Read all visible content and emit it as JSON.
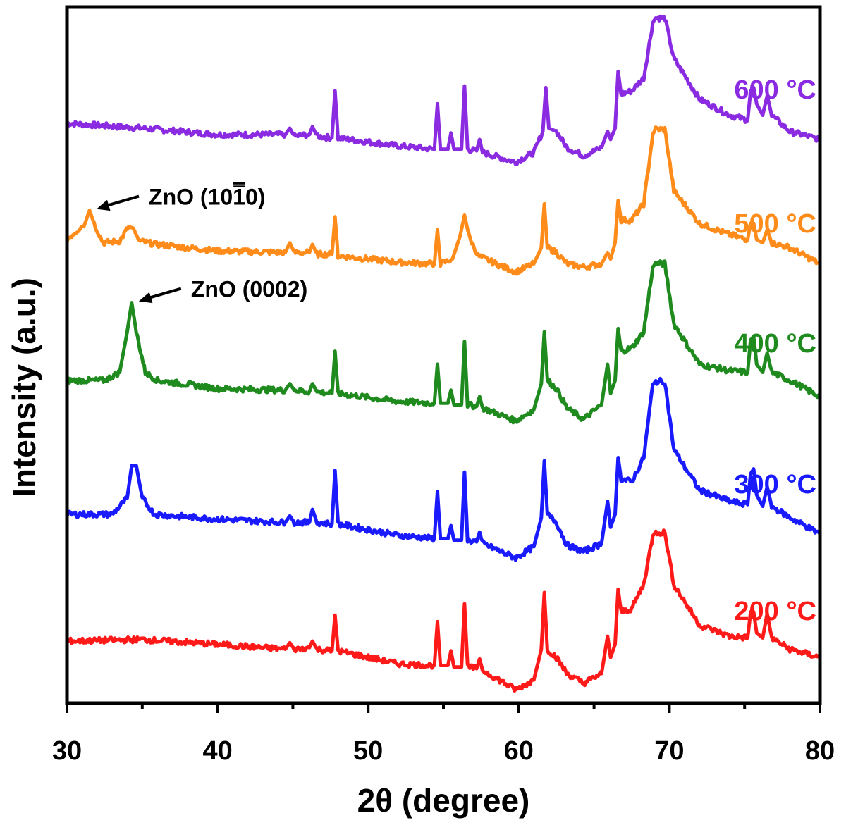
{
  "chart_data": {
    "type": "line",
    "title": "",
    "xlabel": "2θ (degree)",
    "ylabel": "Intensity (a.u.)",
    "xlim": [
      30,
      80
    ],
    "x_ticks": [
      30,
      40,
      50,
      60,
      70,
      80
    ],
    "y_ticks_shown": false,
    "legend": "inline labels at right",
    "series": [
      {
        "name": "600 °C",
        "color": "#8a2be2",
        "offset": 4,
        "points": [
          [
            30,
            0.0
          ],
          [
            35,
            -0.03
          ],
          [
            40,
            -0.07
          ],
          [
            44.5,
            -0.07
          ],
          [
            44.8,
            -0.03
          ],
          [
            45.1,
            -0.08
          ],
          [
            46.1,
            -0.07
          ],
          [
            46.3,
            -0.02
          ],
          [
            46.6,
            -0.08
          ],
          [
            47.6,
            -0.09
          ],
          [
            47.8,
            0.2
          ],
          [
            48.0,
            -0.09
          ],
          [
            52,
            -0.14
          ],
          [
            54.4,
            -0.16
          ],
          [
            54.6,
            0.12
          ],
          [
            54.8,
            -0.16
          ],
          [
            55.3,
            -0.16
          ],
          [
            55.5,
            -0.06
          ],
          [
            55.7,
            -0.16
          ],
          [
            56.2,
            -0.16
          ],
          [
            56.4,
            0.23
          ],
          [
            56.6,
            -0.16
          ],
          [
            57.2,
            -0.17
          ],
          [
            57.4,
            -0.1
          ],
          [
            57.6,
            -0.18
          ],
          [
            59.8,
            -0.24
          ],
          [
            61.0,
            -0.18
          ],
          [
            61.6,
            -0.05
          ],
          [
            61.8,
            0.22
          ],
          [
            62.0,
            -0.03
          ],
          [
            62.5,
            -0.05
          ],
          [
            63.2,
            -0.15
          ],
          [
            64.3,
            -0.2
          ],
          [
            65.5,
            -0.15
          ],
          [
            65.9,
            -0.05
          ],
          [
            66.1,
            -0.1
          ],
          [
            66.4,
            -0.03
          ],
          [
            66.6,
            0.32
          ],
          [
            66.8,
            0.18
          ],
          [
            67.5,
            0.2
          ],
          [
            68.3,
            0.28
          ],
          [
            68.9,
            0.62
          ],
          [
            69.1,
            0.65
          ],
          [
            69.7,
            0.65
          ],
          [
            70.3,
            0.4
          ],
          [
            72,
            0.15
          ],
          [
            74,
            0.05
          ],
          [
            75.2,
            0.02
          ],
          [
            75.4,
            0.2
          ],
          [
            75.6,
            0.22
          ],
          [
            75.8,
            0.12
          ],
          [
            76.2,
            0.05
          ],
          [
            76.5,
            0.17
          ],
          [
            76.8,
            0.05
          ],
          [
            78,
            -0.05
          ],
          [
            80,
            -0.1
          ]
        ]
      },
      {
        "name": "500 °C",
        "color": "#ff8c1a",
        "offset": 3,
        "points": [
          [
            30,
            0.0
          ],
          [
            31.2,
            0.1
          ],
          [
            31.5,
            0.18
          ],
          [
            31.8,
            0.1
          ],
          [
            32.4,
            -0.02
          ],
          [
            33.5,
            -0.01
          ],
          [
            34.1,
            0.08
          ],
          [
            34.4,
            0.07
          ],
          [
            34.8,
            -0.01
          ],
          [
            36,
            -0.03
          ],
          [
            40,
            -0.07
          ],
          [
            44.5,
            -0.08
          ],
          [
            44.8,
            -0.02
          ],
          [
            45.1,
            -0.08
          ],
          [
            46.1,
            -0.08
          ],
          [
            46.3,
            -0.03
          ],
          [
            46.6,
            -0.09
          ],
          [
            47.6,
            -0.09
          ],
          [
            47.8,
            0.14
          ],
          [
            48.0,
            -0.1
          ],
          [
            52,
            -0.14
          ],
          [
            54.4,
            -0.15
          ],
          [
            54.6,
            0.06
          ],
          [
            54.8,
            -0.15
          ],
          [
            55.6,
            -0.12
          ],
          [
            56.1,
            0.02
          ],
          [
            56.4,
            0.15
          ],
          [
            56.7,
            0.02
          ],
          [
            57.3,
            -0.1
          ],
          [
            58.5,
            -0.15
          ],
          [
            59.8,
            -0.2
          ],
          [
            61.0,
            -0.15
          ],
          [
            61.5,
            -0.05
          ],
          [
            61.7,
            0.22
          ],
          [
            61.9,
            -0.05
          ],
          [
            62.5,
            -0.08
          ],
          [
            63.2,
            -0.15
          ],
          [
            64.3,
            -0.17
          ],
          [
            65.5,
            -0.15
          ],
          [
            65.9,
            -0.08
          ],
          [
            66.1,
            -0.12
          ],
          [
            66.4,
            -0.02
          ],
          [
            66.6,
            0.24
          ],
          [
            66.8,
            0.12
          ],
          [
            67.5,
            0.12
          ],
          [
            68.3,
            0.22
          ],
          [
            68.9,
            0.65
          ],
          [
            69.1,
            0.68
          ],
          [
            69.7,
            0.68
          ],
          [
            70.3,
            0.3
          ],
          [
            72,
            0.1
          ],
          [
            74,
            0.03
          ],
          [
            75.2,
            0.0
          ],
          [
            75.4,
            0.1
          ],
          [
            75.6,
            0.1
          ],
          [
            75.8,
            0.0
          ],
          [
            76.2,
            -0.02
          ],
          [
            76.5,
            0.06
          ],
          [
            76.8,
            -0.02
          ],
          [
            78,
            -0.05
          ],
          [
            80,
            -0.15
          ]
        ]
      },
      {
        "name": "400 °C",
        "color": "#1f8b1f",
        "offset": 2,
        "points": [
          [
            30,
            0.0
          ],
          [
            32.5,
            0.0
          ],
          [
            33.5,
            0.05
          ],
          [
            34.0,
            0.3
          ],
          [
            34.3,
            0.48
          ],
          [
            34.6,
            0.3
          ],
          [
            35.2,
            0.05
          ],
          [
            36,
            0.0
          ],
          [
            40,
            -0.05
          ],
          [
            44.5,
            -0.06
          ],
          [
            44.8,
            -0.02
          ],
          [
            45.1,
            -0.06
          ],
          [
            46.1,
            -0.07
          ],
          [
            46.3,
            -0.02
          ],
          [
            46.6,
            -0.07
          ],
          [
            47.6,
            -0.08
          ],
          [
            47.8,
            0.18
          ],
          [
            48.0,
            -0.08
          ],
          [
            52,
            -0.13
          ],
          [
            54.4,
            -0.14
          ],
          [
            54.6,
            0.1
          ],
          [
            54.8,
            -0.14
          ],
          [
            55.3,
            -0.14
          ],
          [
            55.5,
            -0.06
          ],
          [
            55.7,
            -0.15
          ],
          [
            56.2,
            -0.15
          ],
          [
            56.4,
            0.24
          ],
          [
            56.6,
            -0.15
          ],
          [
            57.2,
            -0.16
          ],
          [
            57.4,
            -0.1
          ],
          [
            57.6,
            -0.17
          ],
          [
            59.8,
            -0.25
          ],
          [
            61.0,
            -0.18
          ],
          [
            61.5,
            -0.02
          ],
          [
            61.7,
            0.3
          ],
          [
            61.9,
            0.0
          ],
          [
            62.5,
            -0.05
          ],
          [
            63.2,
            -0.17
          ],
          [
            64.3,
            -0.24
          ],
          [
            65.5,
            -0.15
          ],
          [
            65.9,
            0.1
          ],
          [
            66.1,
            -0.08
          ],
          [
            66.4,
            0.0
          ],
          [
            66.6,
            0.32
          ],
          [
            66.8,
            0.18
          ],
          [
            67.5,
            0.2
          ],
          [
            68.3,
            0.3
          ],
          [
            68.9,
            0.7
          ],
          [
            69.1,
            0.72
          ],
          [
            69.7,
            0.72
          ],
          [
            70.3,
            0.35
          ],
          [
            72,
            0.1
          ],
          [
            74,
            0.06
          ],
          [
            75.2,
            0.05
          ],
          [
            75.4,
            0.25
          ],
          [
            75.6,
            0.27
          ],
          [
            75.8,
            0.1
          ],
          [
            76.2,
            0.05
          ],
          [
            76.5,
            0.17
          ],
          [
            76.8,
            0.05
          ],
          [
            78,
            0.0
          ],
          [
            80,
            -0.1
          ]
        ]
      },
      {
        "name": "300 °C",
        "color": "#1a1aff",
        "offset": 1,
        "points": [
          [
            30,
            0.0
          ],
          [
            33,
            0.0
          ],
          [
            34.0,
            0.1
          ],
          [
            34.3,
            0.3
          ],
          [
            34.6,
            0.3
          ],
          [
            35.0,
            0.1
          ],
          [
            35.8,
            0.0
          ],
          [
            40,
            -0.03
          ],
          [
            44.5,
            -0.05
          ],
          [
            44.8,
            -0.01
          ],
          [
            45.1,
            -0.05
          ],
          [
            46.1,
            -0.05
          ],
          [
            46.3,
            0.03
          ],
          [
            46.6,
            -0.05
          ],
          [
            47.6,
            -0.06
          ],
          [
            47.8,
            0.27
          ],
          [
            48.0,
            -0.06
          ],
          [
            52,
            -0.13
          ],
          [
            54.4,
            -0.15
          ],
          [
            54.6,
            0.14
          ],
          [
            54.8,
            -0.15
          ],
          [
            55.3,
            -0.15
          ],
          [
            55.5,
            -0.07
          ],
          [
            55.7,
            -0.16
          ],
          [
            56.2,
            -0.16
          ],
          [
            56.4,
            0.26
          ],
          [
            56.6,
            -0.16
          ],
          [
            57.2,
            -0.17
          ],
          [
            57.4,
            -0.11
          ],
          [
            57.6,
            -0.18
          ],
          [
            59.8,
            -0.27
          ],
          [
            61.0,
            -0.2
          ],
          [
            61.5,
            -0.02
          ],
          [
            61.7,
            0.33
          ],
          [
            61.9,
            0.0
          ],
          [
            62.5,
            -0.05
          ],
          [
            63.2,
            -0.19
          ],
          [
            64.3,
            -0.23
          ],
          [
            65.5,
            -0.18
          ],
          [
            65.9,
            0.08
          ],
          [
            66.1,
            -0.08
          ],
          [
            66.4,
            0.0
          ],
          [
            66.6,
            0.35
          ],
          [
            66.8,
            0.22
          ],
          [
            67.5,
            0.2
          ],
          [
            68.3,
            0.35
          ],
          [
            68.9,
            0.8
          ],
          [
            69.1,
            0.82
          ],
          [
            69.7,
            0.82
          ],
          [
            70.3,
            0.4
          ],
          [
            72,
            0.15
          ],
          [
            74,
            0.08
          ],
          [
            75.2,
            0.06
          ],
          [
            75.4,
            0.25
          ],
          [
            75.6,
            0.28
          ],
          [
            75.8,
            0.12
          ],
          [
            76.2,
            0.05
          ],
          [
            76.5,
            0.17
          ],
          [
            76.8,
            0.05
          ],
          [
            78,
            -0.02
          ],
          [
            80,
            -0.12
          ]
        ]
      },
      {
        "name": "200 °C",
        "color": "#ff1a1a",
        "offset": 0,
        "points": [
          [
            30,
            0.0
          ],
          [
            35,
            0.01
          ],
          [
            40,
            -0.02
          ],
          [
            44.5,
            -0.05
          ],
          [
            44.8,
            -0.01
          ],
          [
            45.1,
            -0.05
          ],
          [
            46.1,
            -0.04
          ],
          [
            46.3,
            0.0
          ],
          [
            46.6,
            -0.05
          ],
          [
            47.6,
            -0.06
          ],
          [
            47.8,
            0.16
          ],
          [
            48.0,
            -0.06
          ],
          [
            52,
            -0.14
          ],
          [
            54.4,
            -0.15
          ],
          [
            54.6,
            0.12
          ],
          [
            54.8,
            -0.15
          ],
          [
            55.3,
            -0.15
          ],
          [
            55.5,
            -0.06
          ],
          [
            55.7,
            -0.16
          ],
          [
            56.2,
            -0.16
          ],
          [
            56.4,
            0.23
          ],
          [
            56.6,
            -0.16
          ],
          [
            57.2,
            -0.17
          ],
          [
            57.4,
            -0.11
          ],
          [
            57.6,
            -0.18
          ],
          [
            59.8,
            -0.3
          ],
          [
            61.0,
            -0.24
          ],
          [
            61.5,
            -0.05
          ],
          [
            61.7,
            0.3
          ],
          [
            61.9,
            -0.05
          ],
          [
            62.5,
            -0.1
          ],
          [
            63.2,
            -0.2
          ],
          [
            64.3,
            -0.26
          ],
          [
            65.5,
            -0.2
          ],
          [
            65.9,
            0.03
          ],
          [
            66.1,
            -0.1
          ],
          [
            66.4,
            -0.02
          ],
          [
            66.6,
            0.32
          ],
          [
            66.8,
            0.18
          ],
          [
            67.5,
            0.2
          ],
          [
            68.3,
            0.35
          ],
          [
            68.9,
            0.65
          ],
          [
            69.1,
            0.67
          ],
          [
            69.7,
            0.67
          ],
          [
            70.3,
            0.35
          ],
          [
            72,
            0.1
          ],
          [
            74,
            0.03
          ],
          [
            75.2,
            0.02
          ],
          [
            75.4,
            0.18
          ],
          [
            75.6,
            0.18
          ],
          [
            75.8,
            0.05
          ],
          [
            76.2,
            0.02
          ],
          [
            76.5,
            0.17
          ],
          [
            76.8,
            0.02
          ],
          [
            78,
            -0.05
          ],
          [
            80,
            -0.1
          ]
        ]
      }
    ],
    "annotations": [
      {
        "text": "ZnO (10",
        "bar_text": "1",
        "tail_text": "0)",
        "x": 31.5,
        "series": "500 °C"
      },
      {
        "text": "ZnO (0002)",
        "x": 34.3,
        "series": "400 °C"
      }
    ]
  }
}
